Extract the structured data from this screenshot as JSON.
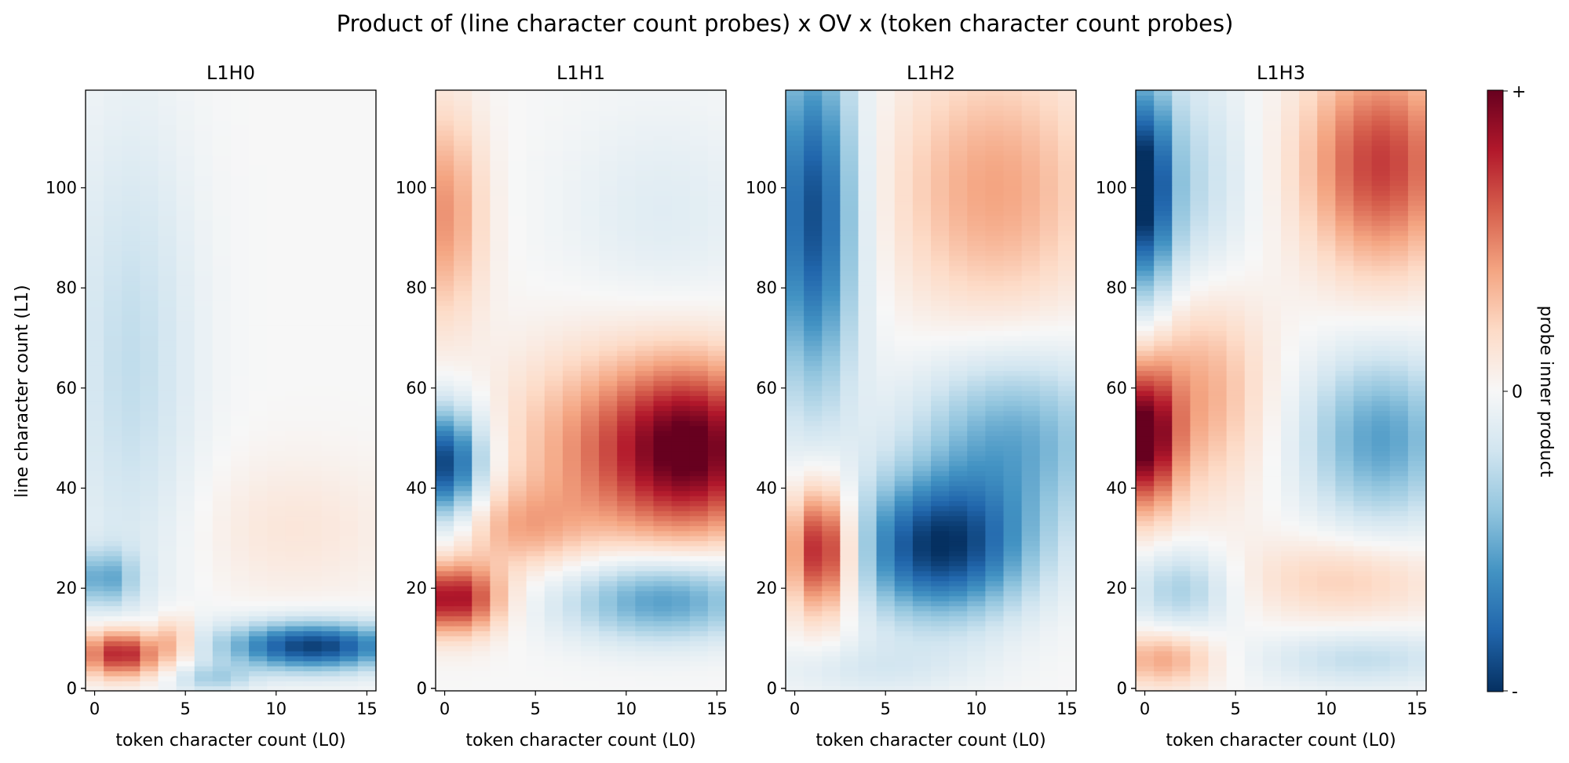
{
  "chart_data": {
    "type": "heatmap",
    "title": "Product of (line character count probes) x OV x (token character count probes)",
    "xlabel": "token character count (L0)",
    "ylabel": "line character count (L1)",
    "x_range": [
      0,
      15
    ],
    "y_range": [
      0,
      119
    ],
    "xticks": [
      0,
      5,
      10,
      15
    ],
    "yticks": [
      0,
      20,
      40,
      60,
      80,
      100
    ],
    "colormap": "RdBu_r",
    "colorbar": {
      "label": "probe inner product",
      "top": "+",
      "middle": "0",
      "bottom": "-"
    },
    "panels": [
      {
        "title": "L1H0",
        "features": [
          {
            "cx": 1.5,
            "cy": 7,
            "sx": 1.6,
            "sy": 3.5,
            "a": 0.85
          },
          {
            "cx": 4.5,
            "cy": 10,
            "sx": 0.7,
            "sy": 3.5,
            "a": 0.35
          },
          {
            "cx": 0.5,
            "cy": 22,
            "sx": 1.2,
            "sy": 4,
            "a": -0.45
          },
          {
            "cx": 12,
            "cy": 8.5,
            "sx": 3.5,
            "sy": 3.5,
            "a": -0.95
          },
          {
            "cx": 6.5,
            "cy": 2,
            "sx": 1.5,
            "sy": 2,
            "a": -0.3
          },
          {
            "cx": 2,
            "cy": 65,
            "sx": 2.5,
            "sy": 35,
            "a": -0.25
          },
          {
            "cx": 11,
            "cy": 32,
            "sx": 4,
            "sy": 10,
            "a": 0.12
          }
        ]
      },
      {
        "title": "L1H1",
        "features": [
          {
            "cx": 0.5,
            "cy": 18,
            "sx": 1.8,
            "sy": 5,
            "a": 0.85
          },
          {
            "cx": 0,
            "cy": 45,
            "sx": 1.5,
            "sy": 8,
            "a": -0.95
          },
          {
            "cx": 0,
            "cy": 95,
            "sx": 1.5,
            "sy": 15,
            "a": 0.45
          },
          {
            "cx": 14,
            "cy": 48,
            "sx": 3,
            "sy": 12,
            "a": 0.85
          },
          {
            "cx": 9,
            "cy": 48,
            "sx": 4,
            "sy": 14,
            "a": 0.45
          },
          {
            "cx": 12,
            "cy": 18,
            "sx": 4,
            "sy": 6,
            "a": -0.6
          },
          {
            "cx": 4,
            "cy": 32,
            "sx": 2.5,
            "sy": 6,
            "a": 0.3
          },
          {
            "cx": 12,
            "cy": 95,
            "sx": 4,
            "sy": 15,
            "a": -0.12
          }
        ]
      },
      {
        "title": "L1H2",
        "features": [
          {
            "cx": 1.5,
            "cy": 28,
            "sx": 1.3,
            "sy": 9,
            "a": 0.95
          },
          {
            "cx": 1,
            "cy": 95,
            "sx": 1.7,
            "sy": 25,
            "a": -0.9
          },
          {
            "cx": 8,
            "cy": 28,
            "sx": 3.5,
            "sy": 10,
            "a": -0.95
          },
          {
            "cx": 12,
            "cy": 50,
            "sx": 4,
            "sy": 12,
            "a": -0.5
          },
          {
            "cx": 11,
            "cy": 100,
            "sx": 4,
            "sy": 18,
            "a": 0.4
          },
          {
            "cx": 4,
            "cy": 4,
            "sx": 4,
            "sy": 4,
            "a": -0.15
          }
        ]
      },
      {
        "title": "L1H3",
        "features": [
          {
            "cx": 0,
            "cy": 50,
            "sx": 1.2,
            "sy": 10,
            "a": 0.95
          },
          {
            "cx": 3,
            "cy": 60,
            "sx": 2.5,
            "sy": 15,
            "a": 0.4
          },
          {
            "cx": 0,
            "cy": 100,
            "sx": 1,
            "sy": 15,
            "a": -0.9
          },
          {
            "cx": 2,
            "cy": 100,
            "sx": 2.5,
            "sy": 18,
            "a": -0.3
          },
          {
            "cx": 13,
            "cy": 105,
            "sx": 3,
            "sy": 15,
            "a": 0.7
          },
          {
            "cx": 13,
            "cy": 50,
            "sx": 3,
            "sy": 12,
            "a": -0.55
          },
          {
            "cx": 11,
            "cy": 22,
            "sx": 4,
            "sy": 6,
            "a": 0.25
          },
          {
            "cx": 1,
            "cy": 6,
            "sx": 2,
            "sy": 4,
            "a": 0.4
          },
          {
            "cx": 2,
            "cy": 20,
            "sx": 2,
            "sy": 6,
            "a": -0.35
          },
          {
            "cx": 12,
            "cy": 6,
            "sx": 4,
            "sy": 4,
            "a": -0.25
          }
        ]
      }
    ]
  }
}
